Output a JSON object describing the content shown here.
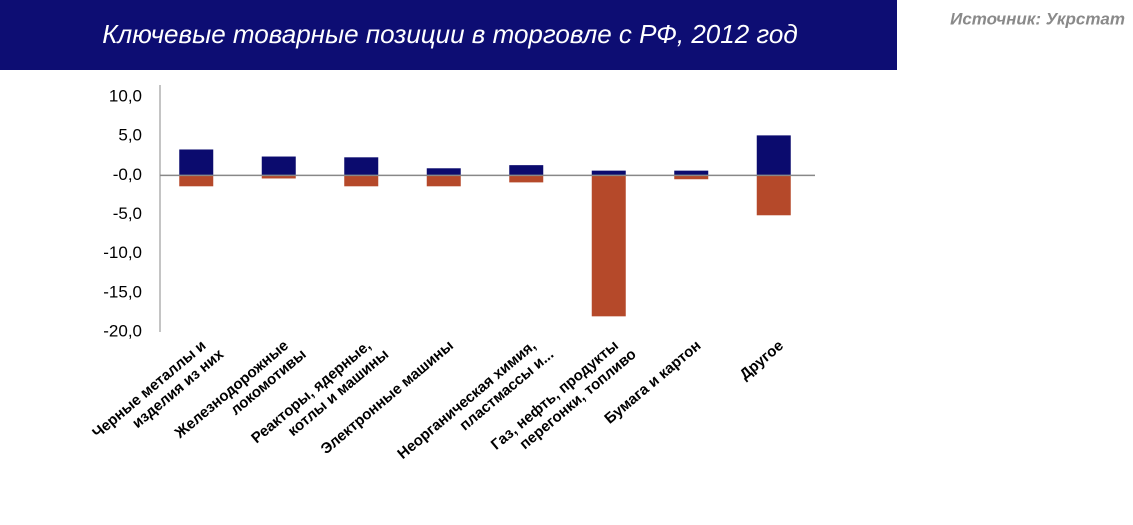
{
  "chart_data": {
    "type": "bar",
    "title": "Ключевые товарные позиции в торговле с РФ,  2012 год",
    "source": "Источник: Укрстат",
    "categories": [
      [
        "Черные металлы и",
        "изделия из них"
      ],
      [
        "Железнодорожные",
        "локомотивы"
      ],
      [
        "Реакторы, ядерные,",
        "котлы и машины"
      ],
      [
        "Электронные машины"
      ],
      [
        "Неорганическая химия,",
        "пластмассы и..."
      ],
      [
        "Газ, нефть, продукты",
        "перегонки, топливо"
      ],
      [
        "Бумага и картон"
      ],
      [
        "Другое"
      ]
    ],
    "series": [
      {
        "color": "#0b0b6e",
        "values": [
          3.3,
          2.4,
          2.3,
          0.9,
          1.3,
          0.6,
          0.6,
          5.1
        ]
      },
      {
        "color": "#b5492a",
        "values": [
          -1.4,
          -0.4,
          -1.4,
          -1.4,
          -0.9,
          -18.0,
          -0.5,
          -5.1
        ]
      }
    ],
    "ylim": [
      -20,
      10
    ],
    "yticks": [
      {
        "value": 10,
        "label": "10,0"
      },
      {
        "value": 5,
        "label": "5,0"
      },
      {
        "value": 0,
        "label": "-0,0"
      },
      {
        "value": -5,
        "label": "-5,0"
      },
      {
        "value": -10,
        "label": "-10,0"
      },
      {
        "value": -15,
        "label": "-15,0"
      },
      {
        "value": -20,
        "label": "-20,0"
      }
    ]
  }
}
